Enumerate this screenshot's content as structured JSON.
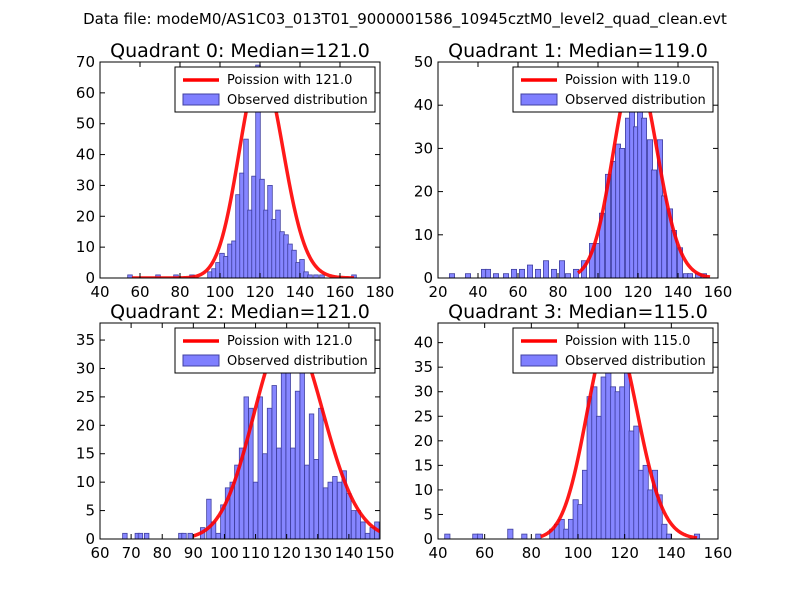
{
  "figure": {
    "suptitle": "Data file: modeM0/AS1C03_013T01_9000001586_10945cztM0_level2_quad_clean.evt"
  },
  "colors": {
    "fit_line": "#ff0000",
    "bar_fill": "#7f7fff",
    "bar_edge": "#4040a0",
    "axes": "#000000"
  },
  "chart_data": [
    {
      "type": "bar",
      "title": "Quadrant 0: Median=121.0",
      "legend_position": "upper right",
      "legend": [
        "Poission with 121.0",
        "Observed distribution"
      ],
      "xlim": [
        40,
        180
      ],
      "ylim": [
        0,
        70
      ],
      "xticks": [
        40,
        60,
        80,
        100,
        120,
        140,
        160,
        180
      ],
      "yticks": [
        0,
        10,
        20,
        30,
        40,
        50,
        60,
        70
      ],
      "bin_width": 2.3,
      "bins": [
        {
          "x": 55,
          "y": 1
        },
        {
          "x": 69,
          "y": 1
        },
        {
          "x": 78,
          "y": 1
        },
        {
          "x": 86,
          "y": 1
        },
        {
          "x": 95,
          "y": 2
        },
        {
          "x": 97,
          "y": 3
        },
        {
          "x": 99,
          "y": 5
        },
        {
          "x": 101,
          "y": 8
        },
        {
          "x": 103,
          "y": 7
        },
        {
          "x": 105,
          "y": 11
        },
        {
          "x": 107,
          "y": 12
        },
        {
          "x": 109,
          "y": 27
        },
        {
          "x": 111,
          "y": 34
        },
        {
          "x": 113,
          "y": 45
        },
        {
          "x": 115,
          "y": 22
        },
        {
          "x": 117,
          "y": 33
        },
        {
          "x": 119,
          "y": 69
        },
        {
          "x": 121,
          "y": 32
        },
        {
          "x": 123,
          "y": 22
        },
        {
          "x": 125,
          "y": 30
        },
        {
          "x": 127,
          "y": 19
        },
        {
          "x": 129,
          "y": 22
        },
        {
          "x": 131,
          "y": 15
        },
        {
          "x": 133,
          "y": 14
        },
        {
          "x": 135,
          "y": 11
        },
        {
          "x": 137,
          "y": 9
        },
        {
          "x": 139,
          "y": 5
        },
        {
          "x": 141,
          "y": 6
        },
        {
          "x": 143,
          "y": 2
        },
        {
          "x": 145,
          "y": 1
        },
        {
          "x": 148,
          "y": 1
        },
        {
          "x": 151,
          "y": 1
        },
        {
          "x": 167,
          "y": 1
        }
      ],
      "fit": {
        "label": "Poission with 121.0",
        "mean": 121.0,
        "x_range": [
          56,
          167
        ]
      }
    },
    {
      "type": "bar",
      "title": "Quadrant 1: Median=119.0",
      "legend_position": "upper right",
      "legend": [
        "Poission with 119.0",
        "Observed distribution"
      ],
      "xlim": [
        20,
        160
      ],
      "ylim": [
        0,
        50
      ],
      "xticks": [
        20,
        40,
        60,
        80,
        100,
        120,
        140,
        160
      ],
      "yticks": [
        0,
        10,
        20,
        30,
        40,
        50
      ],
      "bin_width": 2.6,
      "bins": [
        {
          "x": 27,
          "y": 1
        },
        {
          "x": 35,
          "y": 1
        },
        {
          "x": 43,
          "y": 2
        },
        {
          "x": 45,
          "y": 2
        },
        {
          "x": 49,
          "y": 1
        },
        {
          "x": 54,
          "y": 1
        },
        {
          "x": 58,
          "y": 2
        },
        {
          "x": 62,
          "y": 2
        },
        {
          "x": 66,
          "y": 3
        },
        {
          "x": 70,
          "y": 2
        },
        {
          "x": 74,
          "y": 4
        },
        {
          "x": 78,
          "y": 2
        },
        {
          "x": 82,
          "y": 4
        },
        {
          "x": 85,
          "y": 1
        },
        {
          "x": 89,
          "y": 2
        },
        {
          "x": 93,
          "y": 4
        },
        {
          "x": 97,
          "y": 8
        },
        {
          "x": 100,
          "y": 8
        },
        {
          "x": 102,
          "y": 15
        },
        {
          "x": 105,
          "y": 24
        },
        {
          "x": 108,
          "y": 27
        },
        {
          "x": 110,
          "y": 31
        },
        {
          "x": 112,
          "y": 30
        },
        {
          "x": 115,
          "y": 37
        },
        {
          "x": 117,
          "y": 48
        },
        {
          "x": 119,
          "y": 35
        },
        {
          "x": 121,
          "y": 47
        },
        {
          "x": 123,
          "y": 37
        },
        {
          "x": 126,
          "y": 32
        },
        {
          "x": 128,
          "y": 25
        },
        {
          "x": 131,
          "y": 32
        },
        {
          "x": 133,
          "y": 19
        },
        {
          "x": 136,
          "y": 16
        },
        {
          "x": 138,
          "y": 11
        },
        {
          "x": 141,
          "y": 7
        },
        {
          "x": 144,
          "y": 1
        },
        {
          "x": 146,
          "y": 1
        },
        {
          "x": 150,
          "y": 1
        },
        {
          "x": 153,
          "y": 1
        }
      ],
      "fit": {
        "label": "Poission with 119.0",
        "mean": 119.0,
        "x_range": [
          90,
          156
        ]
      }
    },
    {
      "type": "bar",
      "title": "Quadrant 2: Median=121.0",
      "legend_position": "upper right",
      "legend": [
        "Poission with 121.0",
        "Observed distribution"
      ],
      "xlim": [
        60,
        150
      ],
      "ylim": [
        0,
        38
      ],
      "xticks": [
        60,
        70,
        80,
        90,
        100,
        110,
        120,
        130,
        140,
        150
      ],
      "yticks": [
        0,
        5,
        10,
        15,
        20,
        25,
        30,
        35
      ],
      "bin_width": 1.45,
      "bins": [
        {
          "x": 68,
          "y": 1
        },
        {
          "x": 72,
          "y": 1
        },
        {
          "x": 73,
          "y": 1
        },
        {
          "x": 75,
          "y": 1
        },
        {
          "x": 86,
          "y": 1
        },
        {
          "x": 87,
          "y": 1
        },
        {
          "x": 89,
          "y": 1
        },
        {
          "x": 93,
          "y": 2
        },
        {
          "x": 95,
          "y": 7
        },
        {
          "x": 96.5,
          "y": 3
        },
        {
          "x": 98,
          "y": 1
        },
        {
          "x": 99.5,
          "y": 6
        },
        {
          "x": 101,
          "y": 9
        },
        {
          "x": 102.5,
          "y": 10
        },
        {
          "x": 104,
          "y": 13
        },
        {
          "x": 105.5,
          "y": 16
        },
        {
          "x": 107,
          "y": 25
        },
        {
          "x": 108.5,
          "y": 23
        },
        {
          "x": 110,
          "y": 10
        },
        {
          "x": 111.5,
          "y": 25
        },
        {
          "x": 113,
          "y": 15
        },
        {
          "x": 114.5,
          "y": 23
        },
        {
          "x": 116,
          "y": 27
        },
        {
          "x": 117.5,
          "y": 16
        },
        {
          "x": 119,
          "y": 31
        },
        {
          "x": 120.5,
          "y": 30
        },
        {
          "x": 122,
          "y": 16
        },
        {
          "x": 123.5,
          "y": 26
        },
        {
          "x": 125,
          "y": 35
        },
        {
          "x": 126.5,
          "y": 13
        },
        {
          "x": 128,
          "y": 22
        },
        {
          "x": 129.5,
          "y": 14
        },
        {
          "x": 131,
          "y": 23
        },
        {
          "x": 132.5,
          "y": 9
        },
        {
          "x": 134,
          "y": 10
        },
        {
          "x": 135.5,
          "y": 11
        },
        {
          "x": 137,
          "y": 10
        },
        {
          "x": 138.5,
          "y": 12
        },
        {
          "x": 140,
          "y": 8
        },
        {
          "x": 141.5,
          "y": 5
        },
        {
          "x": 143,
          "y": 5
        },
        {
          "x": 144.5,
          "y": 3
        },
        {
          "x": 146,
          "y": 1
        },
        {
          "x": 147.5,
          "y": 2
        },
        {
          "x": 149,
          "y": 3
        }
      ],
      "fit": {
        "label": "Poission with 121.0",
        "mean": 121.0,
        "x_range": [
          90,
          150
        ]
      }
    },
    {
      "type": "bar",
      "title": "Quadrant 3: Median=115.0",
      "legend_position": "upper right",
      "legend": [
        "Poission with 115.0",
        "Observed distribution"
      ],
      "xlim": [
        40,
        160
      ],
      "ylim": [
        0,
        44
      ],
      "xticks": [
        40,
        60,
        80,
        100,
        120,
        140,
        160
      ],
      "yticks": [
        0,
        5,
        10,
        15,
        20,
        25,
        30,
        35,
        40
      ],
      "bin_width": 2.25,
      "bins": [
        {
          "x": 44,
          "y": 1
        },
        {
          "x": 56,
          "y": 1
        },
        {
          "x": 58,
          "y": 1
        },
        {
          "x": 71,
          "y": 2
        },
        {
          "x": 77,
          "y": 1
        },
        {
          "x": 83,
          "y": 1
        },
        {
          "x": 89,
          "y": 2
        },
        {
          "x": 91,
          "y": 3
        },
        {
          "x": 93,
          "y": 4
        },
        {
          "x": 95,
          "y": 2
        },
        {
          "x": 97,
          "y": 4
        },
        {
          "x": 99,
          "y": 8
        },
        {
          "x": 101,
          "y": 7
        },
        {
          "x": 103,
          "y": 14
        },
        {
          "x": 105,
          "y": 29
        },
        {
          "x": 107,
          "y": 31
        },
        {
          "x": 109,
          "y": 25
        },
        {
          "x": 111,
          "y": 33
        },
        {
          "x": 113,
          "y": 40
        },
        {
          "x": 115,
          "y": 31
        },
        {
          "x": 117,
          "y": 30
        },
        {
          "x": 119,
          "y": 31
        },
        {
          "x": 121,
          "y": 34
        },
        {
          "x": 123,
          "y": 22
        },
        {
          "x": 125,
          "y": 23
        },
        {
          "x": 127,
          "y": 14
        },
        {
          "x": 129,
          "y": 15
        },
        {
          "x": 131,
          "y": 10
        },
        {
          "x": 133,
          "y": 14
        },
        {
          "x": 135,
          "y": 9
        },
        {
          "x": 137,
          "y": 3
        },
        {
          "x": 139,
          "y": 1
        },
        {
          "x": 151,
          "y": 1
        }
      ],
      "fit": {
        "label": "Poission with 115.0",
        "mean": 115.0,
        "x_range": [
          84,
          151
        ]
      }
    }
  ]
}
